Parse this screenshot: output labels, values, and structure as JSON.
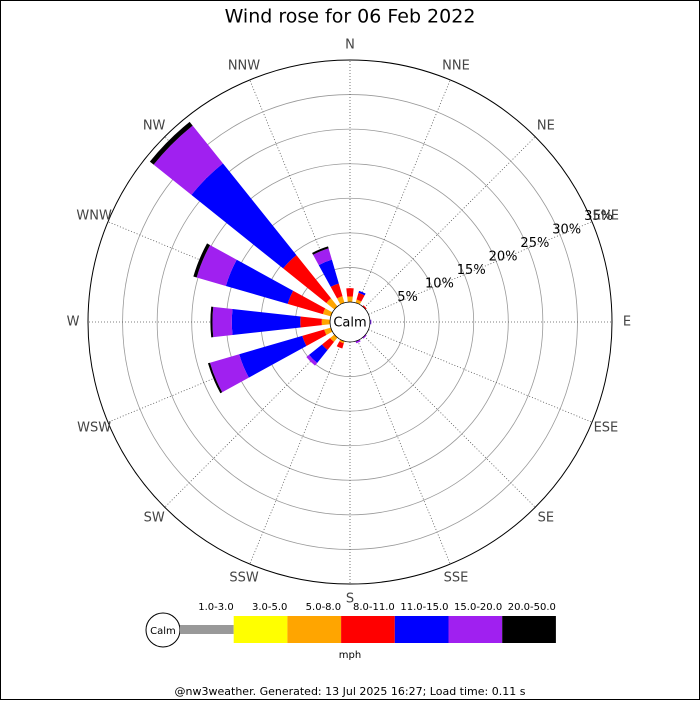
{
  "chart_data": {
    "type": "windrose",
    "title": "Wind rose for 06 Feb 2022",
    "categories": [
      "N",
      "NNE",
      "NE",
      "ENE",
      "E",
      "ESE",
      "SE",
      "SSE",
      "S",
      "SSW",
      "SW",
      "WSW",
      "W",
      "WNW",
      "NW",
      "NNW"
    ],
    "series": [
      {
        "name": "1.0-3.0",
        "color": "#999999",
        "values": [
          0,
          0,
          0,
          0,
          0,
          0,
          0,
          0,
          0,
          0,
          0,
          0,
          0,
          0,
          0,
          0
        ]
      },
      {
        "name": "3.0-5.0",
        "color": "#ffff00",
        "values": [
          0,
          0,
          0,
          0,
          0,
          0,
          0,
          0,
          0,
          0,
          0,
          0,
          0,
          0,
          0,
          0
        ]
      },
      {
        "name": "5.0-8.0",
        "color": "#ffa500",
        "values": [
          0.8,
          0.5,
          0,
          0,
          0,
          0,
          0,
          0,
          0,
          0.3,
          0.8,
          1.0,
          1.2,
          1.2,
          1.5,
          1.0
        ]
      },
      {
        "name": "8.0-11.0",
        "color": "#ff0000",
        "values": [
          1.2,
          1.0,
          0.2,
          0,
          0,
          0,
          0,
          0,
          0,
          0.8,
          1.5,
          3.3,
          3.1,
          5.3,
          8.0,
          1.9
        ]
      },
      {
        "name": "11.0-15.0",
        "color": "#0000ff",
        "values": [
          0,
          0.3,
          0,
          0,
          0.1,
          0,
          0,
          0,
          0,
          0,
          2.4,
          9.5,
          9.9,
          9.3,
          17.0,
          3.6
        ]
      },
      {
        "name": "15.0-20.0",
        "color": "#a020f0",
        "values": [
          0,
          0,
          0,
          0,
          0.1,
          0,
          0.2,
          0.3,
          0,
          0,
          0.5,
          4.4,
          2.8,
          4.4,
          7.0,
          1.7
        ]
      },
      {
        "name": "20.0-50.0",
        "color": "#000000",
        "values": [
          0,
          0,
          0,
          0,
          0,
          0,
          0,
          0,
          0,
          0,
          0,
          0.3,
          0.3,
          0.5,
          0.7,
          0.3
        ]
      }
    ],
    "ylim": [
      0,
      35
    ],
    "yticks": [
      {
        "value": 5,
        "label": "5%"
      },
      {
        "value": 10,
        "label": "10%"
      },
      {
        "value": 15,
        "label": "15%"
      },
      {
        "value": 20,
        "label": "20%"
      },
      {
        "value": 25,
        "label": "25%"
      },
      {
        "value": 30,
        "label": "30%"
      },
      {
        "value": 35,
        "label": "35%"
      }
    ],
    "calm_label": "Calm",
    "unit": "mph",
    "footer": "@nw3weather.  Generated: 13 Jul 2025 16:27; Load time: 0.11 s"
  }
}
